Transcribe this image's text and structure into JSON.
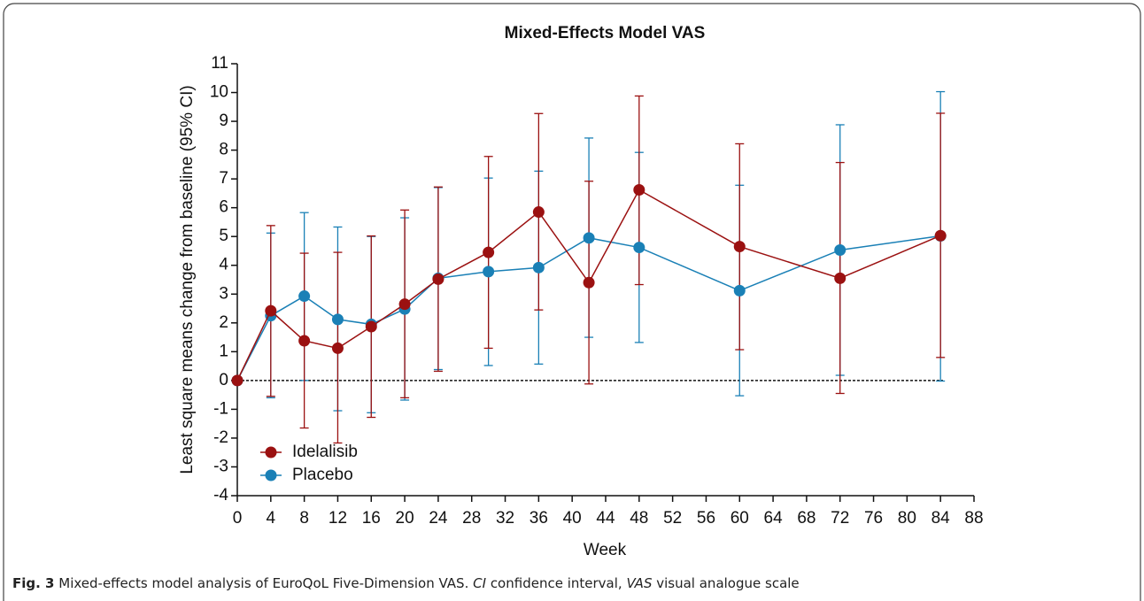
{
  "chart_data": {
    "type": "errorbar-line",
    "title": "Mixed-Effects Model VAS",
    "x_label": "Week",
    "y_label": "Least square means change from baseline (95% CI)",
    "x": [
      0,
      4,
      8,
      12,
      16,
      20,
      24,
      30,
      36,
      42,
      48,
      60,
      72,
      84
    ],
    "xlim": [
      0,
      88
    ],
    "xticks": [
      0,
      4,
      8,
      12,
      16,
      20,
      24,
      28,
      32,
      36,
      40,
      44,
      48,
      52,
      56,
      60,
      64,
      68,
      72,
      76,
      80,
      84,
      88
    ],
    "ylim": [
      -4,
      11
    ],
    "yticks": [
      -4,
      -3,
      -2,
      -1,
      0,
      1,
      2,
      3,
      4,
      5,
      6,
      7,
      8,
      9,
      10,
      11
    ],
    "reference_line": 0,
    "legend_position": "lower left",
    "series": [
      {
        "name": "Idelalisib",
        "color": "#9b1111",
        "values": [
          0,
          2.42,
          1.38,
          1.12,
          1.87,
          2.65,
          3.52,
          4.45,
          5.85,
          3.4,
          6.62,
          4.65,
          3.55,
          5.03
        ],
        "upper": [
          null,
          5.38,
          4.42,
          4.45,
          5.02,
          5.92,
          6.72,
          7.78,
          9.27,
          6.92,
          9.88,
          8.22,
          7.57,
          9.28
        ],
        "lower": [
          null,
          -0.55,
          -1.65,
          -2.17,
          -1.28,
          -0.6,
          0.32,
          1.12,
          2.45,
          -0.12,
          3.33,
          1.07,
          -0.45,
          0.8
        ]
      },
      {
        "name": "Placebo",
        "color": "#1a80b6",
        "values": [
          0,
          2.25,
          2.93,
          2.12,
          1.95,
          2.48,
          3.55,
          3.78,
          3.92,
          4.95,
          4.62,
          3.12,
          4.53,
          5.02
        ],
        "upper": [
          null,
          5.12,
          5.83,
          5.33,
          5.0,
          5.65,
          6.7,
          7.03,
          7.27,
          8.42,
          7.92,
          6.78,
          8.88,
          10.03
        ],
        "lower": [
          null,
          -0.6,
          0.0,
          -1.05,
          -1.12,
          -0.68,
          0.38,
          0.52,
          0.57,
          1.5,
          1.32,
          -0.53,
          0.18,
          -0.02
        ]
      }
    ]
  },
  "caption": {
    "label": "Fig. 3",
    "text": "Mixed-effects model analysis of EuroQoL Five-Dimension VAS.",
    "term1": "CI",
    "def1": "confidence interval,",
    "term2": "VAS",
    "def2": "visual analogue scale"
  }
}
